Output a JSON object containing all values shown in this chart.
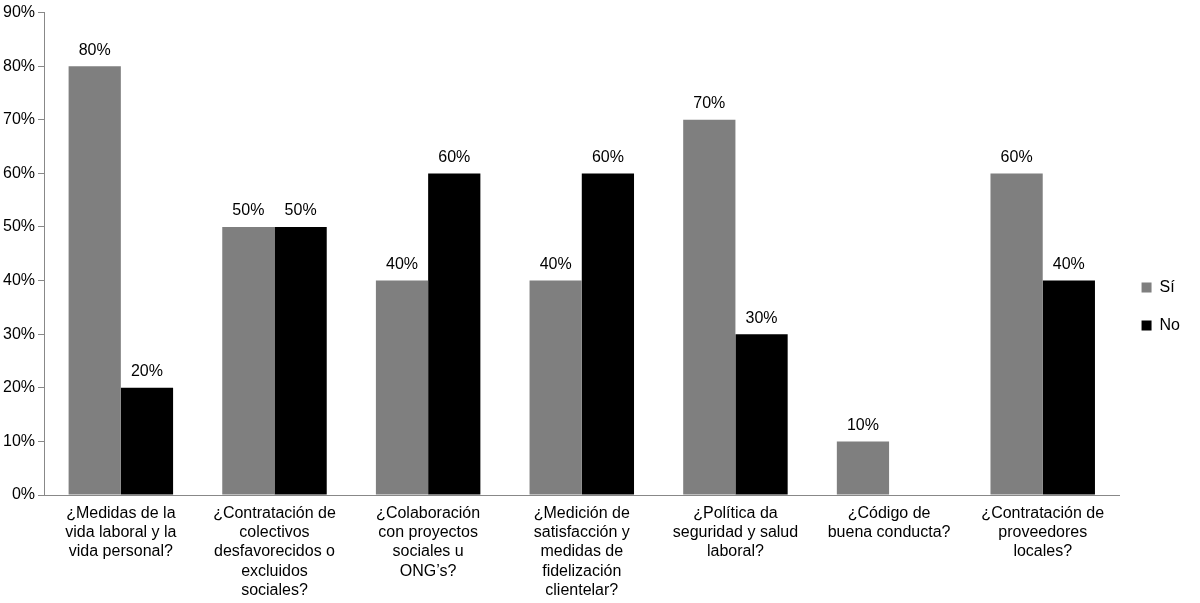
{
  "chart_data": {
    "type": "bar",
    "categories": [
      "¿Medidas de la vida laboral y la vida personal?",
      "¿Contratación de colectivos desfavorecidos o excluidos sociales?",
      "¿Colaboración con proyectos sociales u ONG’s?",
      "¿Medición de satisfacción y medidas de fidelización clientelar?",
      "¿Política da seguridad y salud laboral?",
      "¿Código de buena conducta?",
      "¿Contratación de proveedores locales?"
    ],
    "series": [
      {
        "name": "Sí",
        "color": "#7f7f7f",
        "values": [
          80,
          50,
          40,
          40,
          70,
          10,
          60
        ],
        "value_labels": [
          "80%",
          "50%",
          "40%",
          "40%",
          "70%",
          "10%",
          "60%"
        ]
      },
      {
        "name": "No",
        "color": "#000000",
        "values": [
          20,
          50,
          60,
          60,
          30,
          null,
          40
        ],
        "value_labels": [
          "20%",
          "50%",
          "60%",
          "60%",
          "30%",
          null,
          "40%"
        ]
      }
    ],
    "ylim": [
      0,
      90
    ],
    "yticks": [
      {
        "value": 0,
        "label": "0%"
      },
      {
        "value": 10,
        "label": "10%"
      },
      {
        "value": 20,
        "label": "20%"
      },
      {
        "value": 30,
        "label": "30%"
      },
      {
        "value": 40,
        "label": "40%"
      },
      {
        "value": 50,
        "label": "50%"
      },
      {
        "value": 60,
        "label": "60%"
      },
      {
        "value": 70,
        "label": "70%"
      },
      {
        "value": 80,
        "label": "80%"
      },
      {
        "value": 90,
        "label": "90%"
      }
    ],
    "grid": false,
    "legend": "right"
  }
}
